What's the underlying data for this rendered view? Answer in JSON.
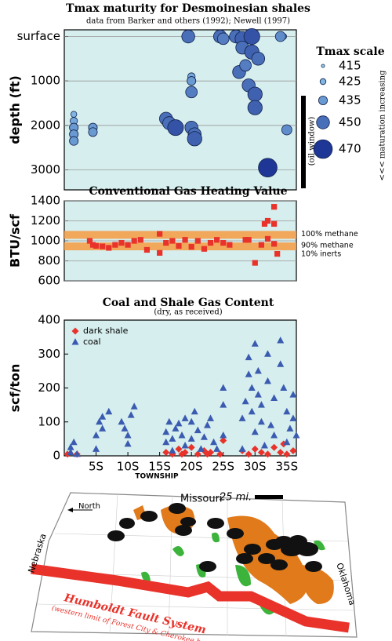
{
  "chart_data": [
    {
      "type": "bubble",
      "title": "Tmax maturity for Desmoinesian shales",
      "subtitle": "data from Barker and others (1992); Newell (1997)",
      "ylabel": "depth (ft)",
      "xlim": [
        0,
        36.5
      ],
      "ylim": [
        3450,
        -150
      ],
      "yticks": [
        {
          "value": 0,
          "label": "surface"
        },
        1000,
        2000,
        3000
      ],
      "grid": true,
      "x": [
        1.5,
        1.5,
        1.5,
        1.5,
        1.5,
        4.5,
        4.5,
        16,
        16.5,
        17.5,
        19.5,
        20,
        20,
        20,
        20,
        20.5,
        20.5,
        24.5,
        25,
        27,
        28,
        28,
        27.5,
        28.5,
        29,
        29.5,
        29.5,
        30,
        30,
        30.5,
        32,
        34.5,
        34,
        35
      ],
      "values": [
        1750,
        1900,
        2050,
        2200,
        2350,
        2050,
        2150,
        1850,
        1950,
        2050,
        0,
        900,
        1000,
        1250,
        2050,
        2200,
        2300,
        0,
        50,
        0,
        50,
        250,
        800,
        650,
        1100,
        0,
        350,
        1300,
        1600,
        500,
        2950,
        0,
        0,
        2100
      ],
      "sizes": [
        425,
        430,
        435,
        435,
        435,
        435,
        435,
        450,
        450,
        460,
        450,
        430,
        435,
        445,
        450,
        450,
        455,
        450,
        445,
        450,
        455,
        450,
        450,
        445,
        450,
        460,
        455,
        455,
        455,
        450,
        470,
        425,
        440,
        440
      ],
      "size_legend": {
        "title": "Tmax scale",
        "values": [
          415,
          425,
          435,
          450,
          470
        ],
        "note": "(oil window)",
        "arrow_label": "<<< maturation increasing"
      }
    },
    {
      "type": "scatter",
      "title": "Conventional Gas Heating Value",
      "ylabel": "BTU/scf",
      "xlim": [
        0,
        36.5
      ],
      "ylim": [
        600,
        1400
      ],
      "yticks": [
        600,
        800,
        1000,
        1200,
        1400
      ],
      "grid": true,
      "bands": [
        {
          "value": 1060,
          "label": [
            "100% methane"
          ]
        },
        {
          "value": 945,
          "label": [
            "90% methane",
            "10% inerts"
          ]
        }
      ],
      "band_color": "#f4a04a",
      "series": [
        {
          "marker": "square",
          "color": "#e8322a",
          "x": [
            4,
            4.5,
            5,
            6,
            7,
            8,
            9,
            10,
            11,
            12,
            13,
            15,
            15,
            16,
            17,
            18,
            19,
            20,
            21,
            22,
            23,
            24,
            25,
            26,
            28.5,
            29,
            30,
            31,
            31.5,
            32,
            32,
            33,
            33,
            33.5,
            33
          ],
          "values": [
            1000,
            960,
            950,
            945,
            930,
            960,
            980,
            960,
            1000,
            1010,
            910,
            1070,
            880,
            980,
            1000,
            950,
            1010,
            940,
            1000,
            920,
            980,
            1010,
            980,
            960,
            1010,
            1010,
            780,
            960,
            1170,
            1200,
            1020,
            1340,
            970,
            870,
            1170
          ]
        }
      ]
    },
    {
      "type": "scatter",
      "title": "Coal and Shale Gas Content",
      "subtitle": "(dry, as received)",
      "ylabel": "scf/ton",
      "xlabel": "TOWNSHIP",
      "xlim": [
        0,
        36.5
      ],
      "ylim": [
        0,
        400
      ],
      "yticks": [
        0,
        100,
        200,
        300,
        400
      ],
      "xticks": [
        {
          "value": 5,
          "label": "5S"
        },
        {
          "value": 10,
          "label": "10S"
        },
        {
          "value": 15,
          "label": "15S"
        },
        {
          "value": 20,
          "label": "20S"
        },
        {
          "value": 25,
          "label": "25S"
        },
        {
          "value": 30,
          "label": "30S"
        },
        {
          "value": 35,
          "label": "35S"
        }
      ],
      "legend": "upper left",
      "series": [
        {
          "name": "dark shale",
          "marker": "diamond",
          "color": "#e8322a",
          "x": [
            0.5,
            2,
            16,
            17,
            18,
            18.5,
            19,
            20,
            21,
            22,
            22.5,
            23,
            24.5,
            25,
            28,
            29,
            30,
            31,
            32,
            33,
            34,
            34.5,
            35,
            36
          ],
          "values": [
            5,
            5,
            10,
            5,
            20,
            5,
            10,
            25,
            5,
            15,
            5,
            10,
            5,
            45,
            15,
            5,
            20,
            10,
            5,
            25,
            10,
            35,
            5,
            15
          ]
        },
        {
          "name": "coal",
          "marker": "triangle",
          "color": "#3a5bb0",
          "x": [
            1,
            1,
            1.5,
            2,
            5,
            5,
            5.5,
            6,
            6,
            7,
            9,
            9.5,
            10,
            10.5,
            11,
            10,
            16,
            16,
            16.5,
            17,
            17,
            17.5,
            18,
            18.5,
            19,
            19,
            20,
            20,
            20.5,
            21,
            21.5,
            22,
            22.5,
            23,
            23.5,
            24,
            25,
            25,
            25,
            28,
            28,
            28.5,
            29,
            29,
            29.5,
            29.5,
            30,
            30,
            30.5,
            30.5,
            31,
            31,
            31.5,
            32,
            32,
            32.5,
            33,
            33,
            34,
            34,
            34.5,
            35,
            35,
            35.5,
            36,
            36,
            36.5
          ],
          "values": [
            10,
            25,
            40,
            5,
            20,
            60,
            100,
            115,
            80,
            130,
            100,
            80,
            60,
            120,
            145,
            35,
            40,
            70,
            100,
            50,
            15,
            80,
            95,
            60,
            110,
            30,
            50,
            100,
            130,
            75,
            20,
            55,
            90,
            110,
            40,
            20,
            200,
            150,
            60,
            20,
            110,
            160,
            240,
            290,
            200,
            130,
            330,
            70,
            250,
            180,
            100,
            150,
            30,
            220,
            300,
            90,
            170,
            60,
            340,
            270,
            200,
            130,
            40,
            80,
            180,
            110,
            60
          ]
        }
      ]
    }
  ],
  "map": {
    "state_top": "Missouri",
    "scale": "25 mi.",
    "north": "North",
    "state_left": "Nebraska",
    "state_right": "Oklahoma",
    "fault": "Humboldt Fault System",
    "fault_note": "(western limit of Forest City & Cherokee basins)"
  }
}
